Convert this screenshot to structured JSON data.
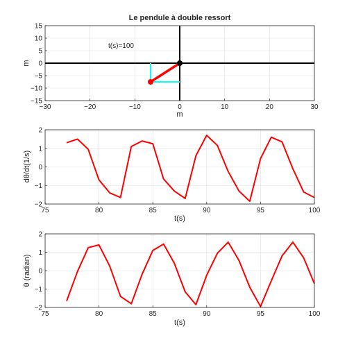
{
  "chart_data": [
    {
      "type": "line",
      "title": "Le pendule à double ressort",
      "xlabel": "m",
      "ylabel": "m",
      "xlim": [
        -30,
        30
      ],
      "ylim": [
        -15,
        15
      ],
      "xticks": [
        -30,
        -20,
        -10,
        0,
        10,
        20,
        30
      ],
      "yticks": [
        -15,
        -10,
        -5,
        0,
        5,
        10,
        15
      ],
      "grid": true,
      "annotation": "t(s)=100",
      "pivot": [
        0,
        0
      ],
      "mass": [
        -6.5,
        -7.5
      ],
      "colors": {
        "rod": "#ff0000",
        "guide": "#00ffff",
        "axis": "#000000",
        "pivot": "#000000"
      }
    },
    {
      "type": "line",
      "title": "",
      "xlabel": "t(s)",
      "ylabel": "dθ/dt(1/s)",
      "xlim": [
        75,
        100
      ],
      "ylim": [
        -2,
        2
      ],
      "xticks": [
        75,
        80,
        85,
        90,
        95,
        100
      ],
      "yticks": [
        -2,
        -1,
        0,
        1,
        2
      ],
      "grid": true,
      "series": [
        {
          "color": "#ff0000",
          "x": [
            77,
            78,
            79,
            80,
            81,
            82,
            83,
            84,
            85,
            86,
            87,
            88,
            89,
            90,
            91,
            92,
            93,
            94,
            95,
            96,
            97,
            98,
            99,
            100
          ],
          "y": [
            1.3,
            1.5,
            0.95,
            -0.7,
            -1.4,
            -1.65,
            1.1,
            1.4,
            1.25,
            -0.65,
            -1.3,
            -1.7,
            0.6,
            1.7,
            1.15,
            -0.25,
            -1.3,
            -1.85,
            0.45,
            1.6,
            1.35,
            -0.1,
            -1.35,
            -1.65
          ]
        }
      ]
    },
    {
      "type": "line",
      "title": "",
      "xlabel": "t(s)",
      "ylabel": "θ (radian)",
      "xlim": [
        75,
        100
      ],
      "ylim": [
        -2,
        2
      ],
      "xticks": [
        75,
        80,
        85,
        90,
        95,
        100
      ],
      "yticks": [
        -2,
        -1,
        0,
        1,
        2
      ],
      "grid": true,
      "series": [
        {
          "color": "#ff0000",
          "x": [
            77,
            78,
            79,
            80,
            81,
            82,
            83,
            84,
            85,
            86,
            87,
            88,
            89,
            90,
            91,
            92,
            93,
            94,
            95,
            96,
            97,
            98,
            99,
            100
          ],
          "y": [
            -1.65,
            -0.05,
            1.25,
            1.4,
            0.25,
            -1.4,
            -1.8,
            -0.2,
            1.1,
            1.45,
            0.4,
            -1.15,
            -1.85,
            -0.25,
            0.95,
            1.55,
            0.55,
            -0.9,
            -1.95,
            -0.55,
            0.8,
            1.55,
            0.7,
            -0.7
          ]
        }
      ]
    }
  ]
}
